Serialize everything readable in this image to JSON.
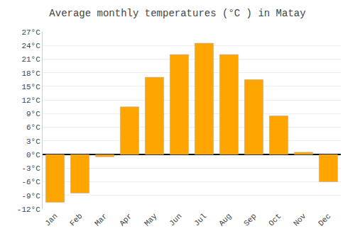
{
  "chart_data": {
    "type": "bar",
    "title": "Average monthly temperatures (°C ) in Matay",
    "categories": [
      "Jan",
      "Feb",
      "Mar",
      "Apr",
      "May",
      "Jun",
      "Jul",
      "Aug",
      "Sep",
      "Oct",
      "Nov",
      "Dec"
    ],
    "values": [
      -10.5,
      -8.5,
      -0.5,
      10.5,
      17.0,
      22.0,
      24.5,
      22.0,
      16.5,
      8.5,
      0.5,
      -6.0
    ],
    "color": "#FFA500",
    "ylim": [
      -12,
      27
    ],
    "yticks": [
      {
        "value": -12,
        "label": "-12°C"
      },
      {
        "value": -9,
        "label": "-9°C"
      },
      {
        "value": -6,
        "label": "-6°C"
      },
      {
        "value": -3,
        "label": "-3°C"
      },
      {
        "value": 0,
        "label": "0°C"
      },
      {
        "value": 3,
        "label": "3°C"
      },
      {
        "value": 6,
        "label": "6°C"
      },
      {
        "value": 9,
        "label": "9°C"
      },
      {
        "value": 12,
        "label": "12°C"
      },
      {
        "value": 15,
        "label": "15°C"
      },
      {
        "value": 18,
        "label": "18°C"
      },
      {
        "value": 21,
        "label": "21°C"
      },
      {
        "value": 24,
        "label": "24°C"
      },
      {
        "value": 27,
        "label": "27°C"
      }
    ],
    "grid": true
  }
}
